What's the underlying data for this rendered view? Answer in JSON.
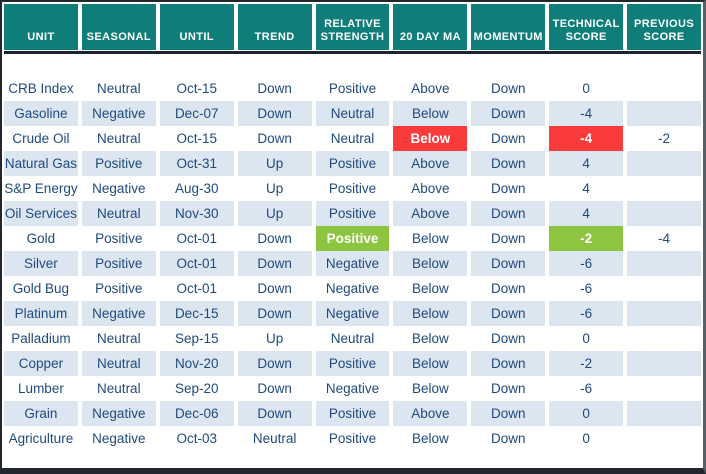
{
  "chart_data": {
    "type": "table",
    "columns": [
      "UNIT",
      "SEASONAL",
      "UNTIL",
      "TREND",
      "RELATIVE STRENGTH",
      "20 DAY MA",
      "MOMENTUM",
      "TECHNICAL SCORE",
      "PREVIOUS SCORE"
    ],
    "column_keys": [
      "unit",
      "seasonal",
      "until",
      "trend",
      "relative-strength",
      "20-day-ma",
      "momentum",
      "technical-score",
      "previous-score"
    ],
    "rows": [
      [
        "CRB Index",
        "Neutral",
        "Oct-15",
        "Down",
        "Positive",
        "Above",
        "Down",
        "0",
        ""
      ],
      [
        "Gasoline",
        "Negative",
        "Dec-07",
        "Down",
        "Neutral",
        "Below",
        "Down",
        "-4",
        ""
      ],
      [
        "Crude Oil",
        "Neutral",
        "Oct-15",
        "Down",
        "Neutral",
        "Below",
        "Down",
        "-4",
        "-2"
      ],
      [
        "Natural Gas",
        "Positive",
        "Oct-31",
        "Up",
        "Positive",
        "Above",
        "Down",
        "4",
        ""
      ],
      [
        "S&P Energy",
        "Negative",
        "Aug-30",
        "Up",
        "Positive",
        "Above",
        "Down",
        "4",
        ""
      ],
      [
        "Oil Services",
        "Neutral",
        "Nov-30",
        "Up",
        "Positive",
        "Above",
        "Down",
        "4",
        ""
      ],
      [
        "Gold",
        "Positive",
        "Oct-01",
        "Down",
        "Positive",
        "Below",
        "Down",
        "-2",
        "-4"
      ],
      [
        "Silver",
        "Positive",
        "Oct-01",
        "Down",
        "Negative",
        "Below",
        "Down",
        "-6",
        ""
      ],
      [
        "Gold Bug",
        "Positive",
        "Oct-01",
        "Down",
        "Negative",
        "Below",
        "Down",
        "-6",
        ""
      ],
      [
        "Platinum",
        "Negative",
        "Dec-15",
        "Down",
        "Negative",
        "Below",
        "Down",
        "-6",
        ""
      ],
      [
        "Palladium",
        "Neutral",
        "Sep-15",
        "Up",
        "Neutral",
        "Below",
        "Down",
        "0",
        ""
      ],
      [
        "Copper",
        "Neutral",
        "Nov-20",
        "Down",
        "Positive",
        "Below",
        "Down",
        "-2",
        ""
      ],
      [
        "Lumber",
        "Neutral",
        "Sep-20",
        "Down",
        "Negative",
        "Below",
        "Down",
        "-6",
        ""
      ],
      [
        "Grain",
        "Negative",
        "Dec-06",
        "Down",
        "Positive",
        "Above",
        "Down",
        "0",
        ""
      ],
      [
        "Agriculture",
        "Negative",
        "Oct-03",
        "Neutral",
        "Positive",
        "Below",
        "Down",
        "0",
        ""
      ]
    ],
    "highlights": [
      {
        "row": 2,
        "col": 5,
        "type": "red"
      },
      {
        "row": 2,
        "col": 7,
        "type": "red"
      },
      {
        "row": 6,
        "col": 4,
        "type": "green"
      },
      {
        "row": 6,
        "col": 7,
        "type": "green"
      }
    ],
    "zebra": "odd data rows white, even data rows light blue",
    "legend_position": "none"
  },
  "colors": {
    "header_bg": "#0f7e79",
    "row_alt": "#dce6f1",
    "text": "#1f497d",
    "red_highlight": "#fa3b3b",
    "green_highlight": "#8dc540",
    "rule": "#1c2230"
  }
}
